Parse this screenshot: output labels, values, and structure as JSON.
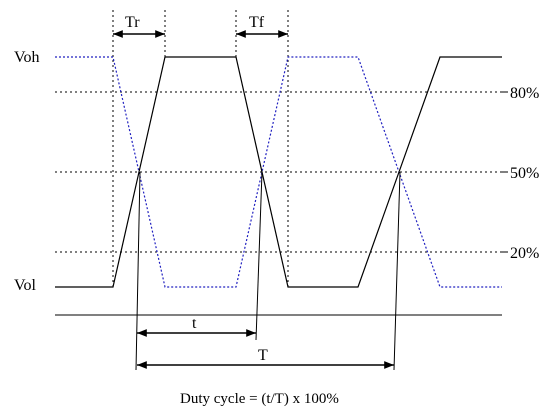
{
  "labels": {
    "voh": "Voh",
    "vol": "Vol",
    "tr": "Tr",
    "tf": "Tf",
    "level_80": "80%",
    "level_50": "50%",
    "level_20": "20%",
    "t": "t",
    "T": "T",
    "formula": "Duty cycle = (t/T) x 100%"
  },
  "colors": {
    "solid_waveform": "#000000",
    "dotted_waveform": "#2020c0",
    "guide_lines": "#000000"
  }
}
